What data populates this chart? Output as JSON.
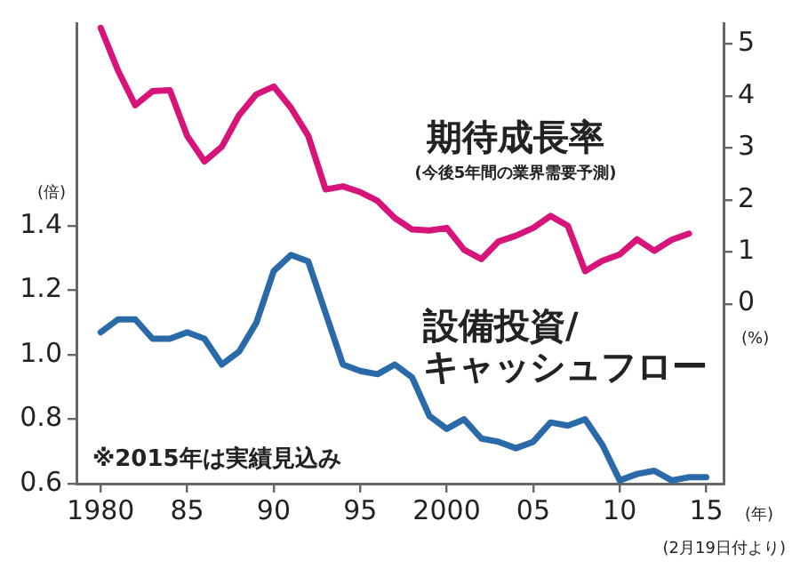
{
  "chart_data": {
    "type": "line",
    "xlabel": "(年)",
    "ylabel": "(倍)",
    "y2label": "(%)",
    "x": [
      1980,
      1981,
      1982,
      1983,
      1984,
      1985,
      1986,
      1987,
      1988,
      1989,
      1990,
      1991,
      1992,
      1993,
      1994,
      1995,
      1996,
      1997,
      1998,
      1999,
      2000,
      2001,
      2002,
      2003,
      2004,
      2005,
      2006,
      2007,
      2008,
      2009,
      2010,
      2011,
      2012,
      2013,
      2014,
      2015
    ],
    "series": [
      {
        "name": "期待成長率",
        "color": "#d6147a",
        "axis": "y2",
        "values": [
          5.31,
          4.49,
          3.82,
          4.09,
          4.11,
          3.23,
          2.74,
          3.02,
          3.63,
          4.03,
          4.18,
          3.77,
          3.23,
          2.2,
          2.26,
          2.15,
          1.98,
          1.65,
          1.43,
          1.41,
          1.46,
          1.04,
          0.86,
          1.2,
          1.31,
          1.46,
          1.69,
          1.5,
          0.63,
          0.83,
          0.95,
          1.24,
          1.02,
          1.23,
          1.35,
          null
        ]
      },
      {
        "name": "設備投資/キャッシュフロー",
        "color": "#2a6aa8",
        "values": [
          1.07,
          1.11,
          1.11,
          1.05,
          1.05,
          1.07,
          1.05,
          0.97,
          1.01,
          1.1,
          1.26,
          1.31,
          1.29,
          1.13,
          0.97,
          0.95,
          0.94,
          0.97,
          0.93,
          0.81,
          0.77,
          0.8,
          0.74,
          0.73,
          0.71,
          0.73,
          0.79,
          0.78,
          0.8,
          0.72,
          0.61,
          0.63,
          0.64,
          0.61,
          0.62,
          0.62
        ]
      }
    ],
    "xlim": [
      1978.6,
      2016
    ],
    "xticks": [
      1980,
      {
        "value": 1985,
        "label": "85"
      },
      {
        "value": 1990,
        "label": "90"
      },
      {
        "value": 1995,
        "label": "95"
      },
      2000,
      {
        "value": 2005,
        "label": "05"
      },
      {
        "value": 2010,
        "label": "10"
      },
      {
        "value": 2015,
        "label": "15"
      }
    ],
    "ylim": [
      0.6,
      2.03
    ],
    "yticks": [
      0.6,
      0.8,
      {
        "value": 1,
        "label": "1.0"
      },
      1.2,
      1.4
    ],
    "y2lim": [
      -3.46,
      5.4
    ],
    "y2ticks": [
      0,
      1,
      2,
      3,
      4,
      5
    ],
    "annotations": [
      "(今後5年間の業界需要予測)",
      "※2015年は実績見込み",
      "(2月19日付より)"
    ],
    "grid": false,
    "legend": false,
    "marker": "none",
    "line_style": "solid"
  }
}
